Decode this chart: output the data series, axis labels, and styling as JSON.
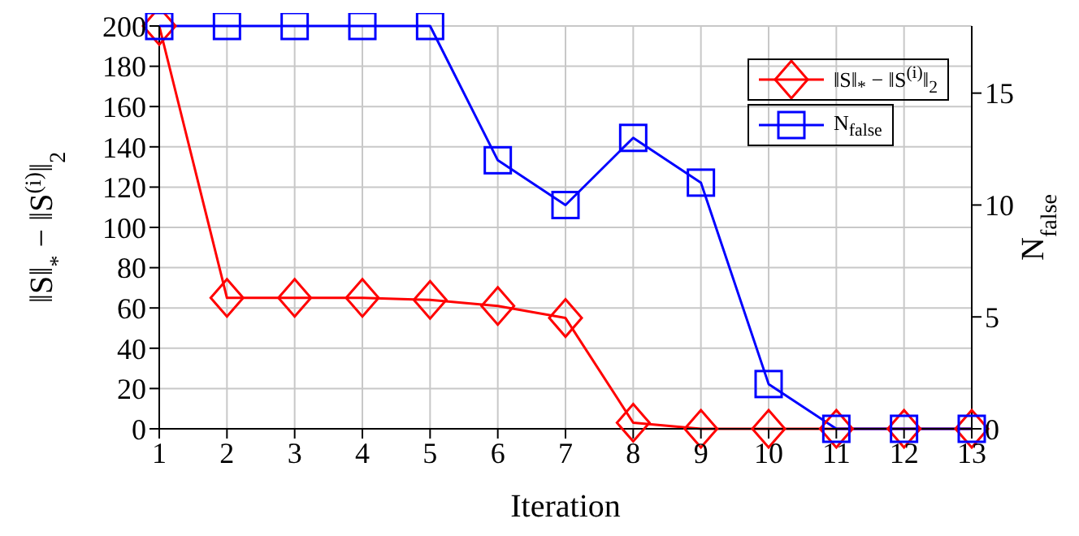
{
  "chart_data": {
    "type": "line",
    "xlabel": "Iteration",
    "ylabel": "‖S‖$_{*}$ − ‖S$^{(i)}$‖$_{2}$",
    "y2label": "N$_{false}$",
    "x": [
      1,
      2,
      3,
      4,
      5,
      6,
      7,
      8,
      9,
      10,
      11,
      12,
      13
    ],
    "xlim": [
      1,
      13
    ],
    "xticks": [
      1,
      2,
      3,
      4,
      5,
      6,
      7,
      8,
      9,
      10,
      11,
      12,
      13
    ],
    "ylim": [
      0,
      200
    ],
    "yticks": [
      0,
      20,
      40,
      60,
      80,
      100,
      120,
      140,
      160,
      180,
      200
    ],
    "y2lim": [
      0,
      18
    ],
    "y2ticks": [
      0,
      5,
      10,
      15
    ],
    "grid": true,
    "legend": "top right",
    "line_style": "solid",
    "series": [
      {
        "name": "‖S‖$_{*}$ − ‖S$^{(i)}$‖$_{2}$",
        "color": "#ff0000",
        "marker": "diamond",
        "values": [
          200,
          65,
          65,
          65,
          64,
          61,
          55,
          3,
          0,
          0,
          0,
          0,
          0
        ]
      },
      {
        "name": "N$_{false}$",
        "color": "#0000ff",
        "marker": "square",
        "axis": "y2",
        "values": [
          18,
          18,
          18,
          18,
          18,
          12,
          10,
          13,
          11,
          2,
          0,
          0,
          0
        ]
      }
    ]
  }
}
